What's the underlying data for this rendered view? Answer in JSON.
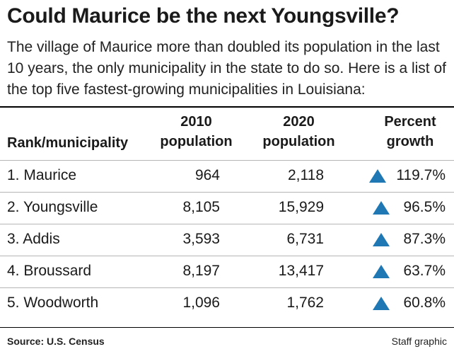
{
  "header": {
    "title": "Could Maurice be the next Youngsville?",
    "subtitle": "The village of Maurice more than doubled its population in the last 10 years, the only municipality in the state to do so. Here is a list of the top five fastest-growing municipalities in Louisiana:"
  },
  "colors": {
    "arrow": "#1f78b4"
  },
  "chart_data": {
    "type": "table",
    "columns": [
      "Rank/municipality",
      "2010 population",
      "2020 population",
      "Percent growth"
    ],
    "rows": [
      {
        "rank_name": "1. Maurice",
        "pop_2010": "964",
        "pop_2020": "2,118",
        "growth": "119.7%",
        "growth_icon": "up-triangle-icon"
      },
      {
        "rank_name": "2. Youngsville",
        "pop_2010": "8,105",
        "pop_2020": "15,929",
        "growth": "96.5%",
        "growth_icon": "up-triangle-icon"
      },
      {
        "rank_name": "3. Addis",
        "pop_2010": "3,593",
        "pop_2020": "6,731",
        "growth": "87.3%",
        "growth_icon": "up-triangle-icon"
      },
      {
        "rank_name": "4. Broussard",
        "pop_2010": "8,197",
        "pop_2020": "13,417",
        "growth": "63.7%",
        "growth_icon": "up-triangle-icon"
      },
      {
        "rank_name": "5. Woodworth",
        "pop_2010": "1,096",
        "pop_2020": "1,762",
        "growth": "60.8%",
        "growth_icon": "up-triangle-icon"
      }
    ]
  },
  "footer": {
    "source": "Source: U.S. Census",
    "credit": "Staff graphic"
  }
}
